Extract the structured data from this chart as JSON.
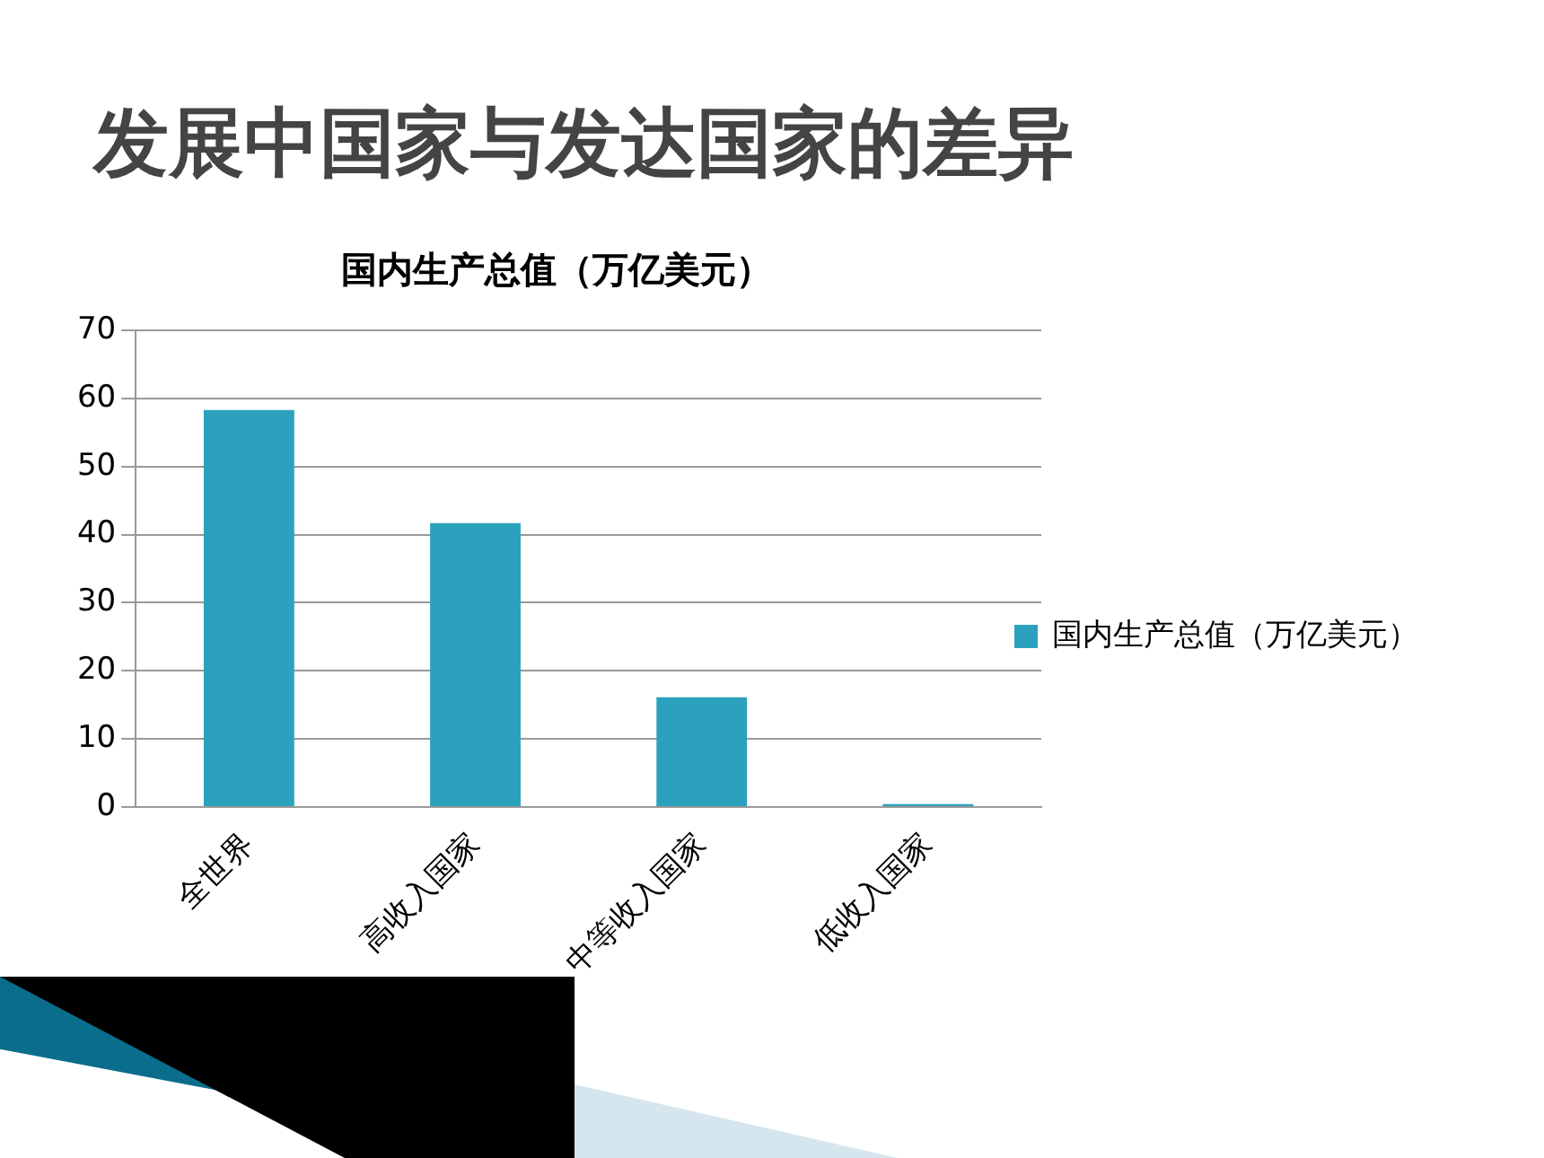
{
  "chart_data": {
    "type": "bar",
    "title": "发展中国家与发达国家的差异",
    "subtitle": "国内生产总值（万亿美元）",
    "categories": [
      "全世界",
      "高收入国家",
      "中等收入国家",
      "低收入国家"
    ],
    "series": [
      {
        "name": "国内生产总值（万亿美元）",
        "color": "#2ca1bd",
        "values": [
          58.3,
          41.7,
          16.1,
          0.4
        ]
      }
    ],
    "ylim": [
      0,
      70
    ],
    "yticks": [
      0,
      10,
      20,
      30,
      40,
      50,
      60,
      70
    ],
    "grid": "y",
    "legend": "right"
  }
}
